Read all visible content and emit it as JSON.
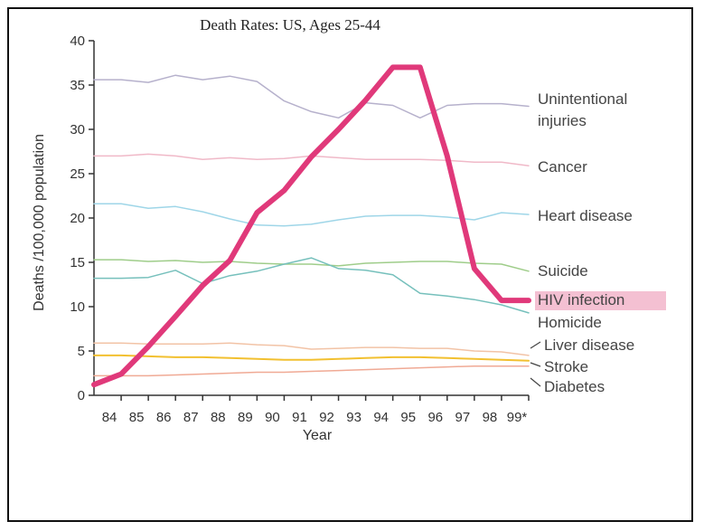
{
  "chart_data": {
    "type": "line",
    "title": "Death Rates: US, Ages 25-44",
    "xlabel": "Year",
    "ylabel": "Deaths /100,000 population",
    "ylim": [
      0,
      40
    ],
    "xlim": [
      83,
      99
    ],
    "yticks": [
      "0",
      "5",
      "10",
      "15",
      "20",
      "25",
      "30",
      "35",
      "40"
    ],
    "xticks": [
      {
        "x": 84,
        "label": "84"
      },
      {
        "x": 85,
        "label": "85"
      },
      {
        "x": 86,
        "label": "86"
      },
      {
        "x": 87,
        "label": "87"
      },
      {
        "x": 88,
        "label": "88"
      },
      {
        "x": 89,
        "label": "89"
      },
      {
        "x": 90,
        "label": "90"
      },
      {
        "x": 91,
        "label": "91"
      },
      {
        "x": 92,
        "label": "92"
      },
      {
        "x": 93,
        "label": "93"
      },
      {
        "x": 94,
        "label": "94"
      },
      {
        "x": 95,
        "label": "95"
      },
      {
        "x": 96,
        "label": "96"
      },
      {
        "x": 97,
        "label": "97"
      },
      {
        "x": 98,
        "label": "98"
      },
      {
        "x": 99,
        "label": "99*"
      }
    ],
    "grid": false,
    "x": [
      83,
      84,
      85,
      86,
      87,
      88,
      89,
      90,
      91,
      92,
      93,
      94,
      95,
      96,
      97,
      98,
      99
    ],
    "series": [
      {
        "name": "Unintentional injuries",
        "label_lines": [
          "Unintentional",
          "injuries"
        ],
        "color": "#b6b1cc",
        "width": 1.5,
        "values": [
          35.6,
          35.6,
          35.3,
          36.1,
          35.6,
          36.0,
          35.4,
          33.2,
          32.0,
          31.3,
          33.0,
          32.7,
          31.3,
          32.7,
          32.9,
          32.9,
          32.6
        ]
      },
      {
        "name": "Cancer",
        "label_lines": [
          "Cancer"
        ],
        "color": "#f0b9c8",
        "width": 1.5,
        "values": [
          27.0,
          27.0,
          27.2,
          27.0,
          26.6,
          26.8,
          26.6,
          26.7,
          27.0,
          26.8,
          26.6,
          26.6,
          26.6,
          26.5,
          26.3,
          26.3,
          25.9
        ]
      },
      {
        "name": "Heart disease",
        "label_lines": [
          "Heart disease"
        ],
        "color": "#9fd6e8",
        "width": 1.5,
        "values": [
          21.6,
          21.6,
          21.1,
          21.3,
          20.7,
          19.9,
          19.2,
          19.1,
          19.3,
          19.8,
          20.2,
          20.3,
          20.3,
          20.1,
          19.8,
          20.6,
          20.4
        ]
      },
      {
        "name": "Suicide",
        "label_lines": [
          "Suicide"
        ],
        "color": "#9fcd8a",
        "width": 1.5,
        "values": [
          15.3,
          15.3,
          15.1,
          15.2,
          15.0,
          15.1,
          14.9,
          14.8,
          14.8,
          14.6,
          14.9,
          15.0,
          15.1,
          15.1,
          14.9,
          14.8,
          14.0
        ]
      },
      {
        "name": "HIV infection",
        "label_lines": [
          "HIV infection"
        ],
        "color": "#e0397a",
        "width": 6,
        "highlight": true,
        "values": [
          1.2,
          2.4,
          5.5,
          8.9,
          12.4,
          15.2,
          20.6,
          23.1,
          26.9,
          30.0,
          33.3,
          37.0,
          37.0,
          27.0,
          14.3,
          10.7,
          10.7
        ]
      },
      {
        "name": "Homicide",
        "label_lines": [
          "Homicide"
        ],
        "color": "#76c0bc",
        "width": 1.5,
        "values": [
          13.2,
          13.2,
          13.3,
          14.1,
          12.6,
          13.5,
          14.0,
          14.8,
          15.5,
          14.3,
          14.1,
          13.6,
          11.5,
          11.2,
          10.8,
          10.2,
          9.3
        ]
      },
      {
        "name": "Liver disease",
        "label_lines": [
          "Liver disease"
        ],
        "color": "#f2c3a6",
        "width": 1.5,
        "values": [
          5.9,
          5.9,
          5.8,
          5.8,
          5.8,
          5.9,
          5.7,
          5.6,
          5.2,
          5.3,
          5.4,
          5.4,
          5.3,
          5.3,
          5.0,
          4.9,
          4.5
        ]
      },
      {
        "name": "Stroke",
        "label_lines": [
          "Stroke"
        ],
        "color": "#f2c030",
        "width": 2,
        "values": [
          4.5,
          4.5,
          4.4,
          4.3,
          4.3,
          4.2,
          4.1,
          4.0,
          4.0,
          4.1,
          4.2,
          4.3,
          4.3,
          4.2,
          4.1,
          4.0,
          3.9
        ]
      },
      {
        "name": "Diabetes",
        "label_lines": [
          "Diabetes"
        ],
        "color": "#f0aa95",
        "width": 1.5,
        "values": [
          2.2,
          2.2,
          2.2,
          2.3,
          2.4,
          2.5,
          2.6,
          2.6,
          2.7,
          2.8,
          2.9,
          3.0,
          3.1,
          3.2,
          3.3,
          3.3,
          3.3
        ]
      }
    ]
  }
}
